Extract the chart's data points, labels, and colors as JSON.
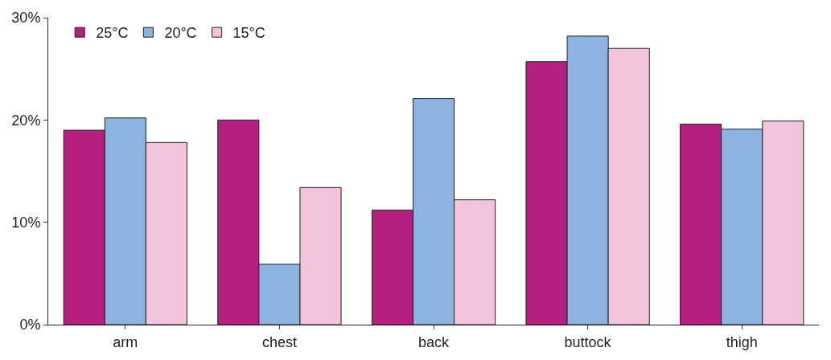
{
  "chart_data": {
    "type": "bar",
    "categories": [
      "arm",
      "chest",
      "back",
      "buttock",
      "thigh"
    ],
    "series": [
      {
        "name": "25°C",
        "color": "#b41f80",
        "values": [
          19.0,
          20.0,
          11.2,
          25.7,
          19.6
        ]
      },
      {
        "name": "20°C",
        "color": "#8fb3e0",
        "values": [
          20.2,
          5.9,
          22.1,
          28.2,
          19.1
        ]
      },
      {
        "name": "15°C",
        "color": "#f2c4dc",
        "values": [
          17.8,
          13.4,
          12.2,
          27.0,
          19.9
        ]
      }
    ],
    "ylim": [
      0,
      30
    ],
    "yticks": [
      {
        "value": 0,
        "label": "0%"
      },
      {
        "value": 10,
        "label": "10%"
      },
      {
        "value": 20,
        "label": "20%"
      },
      {
        "value": 30,
        "label": "30%"
      }
    ],
    "grid": false,
    "legend": "top left"
  }
}
